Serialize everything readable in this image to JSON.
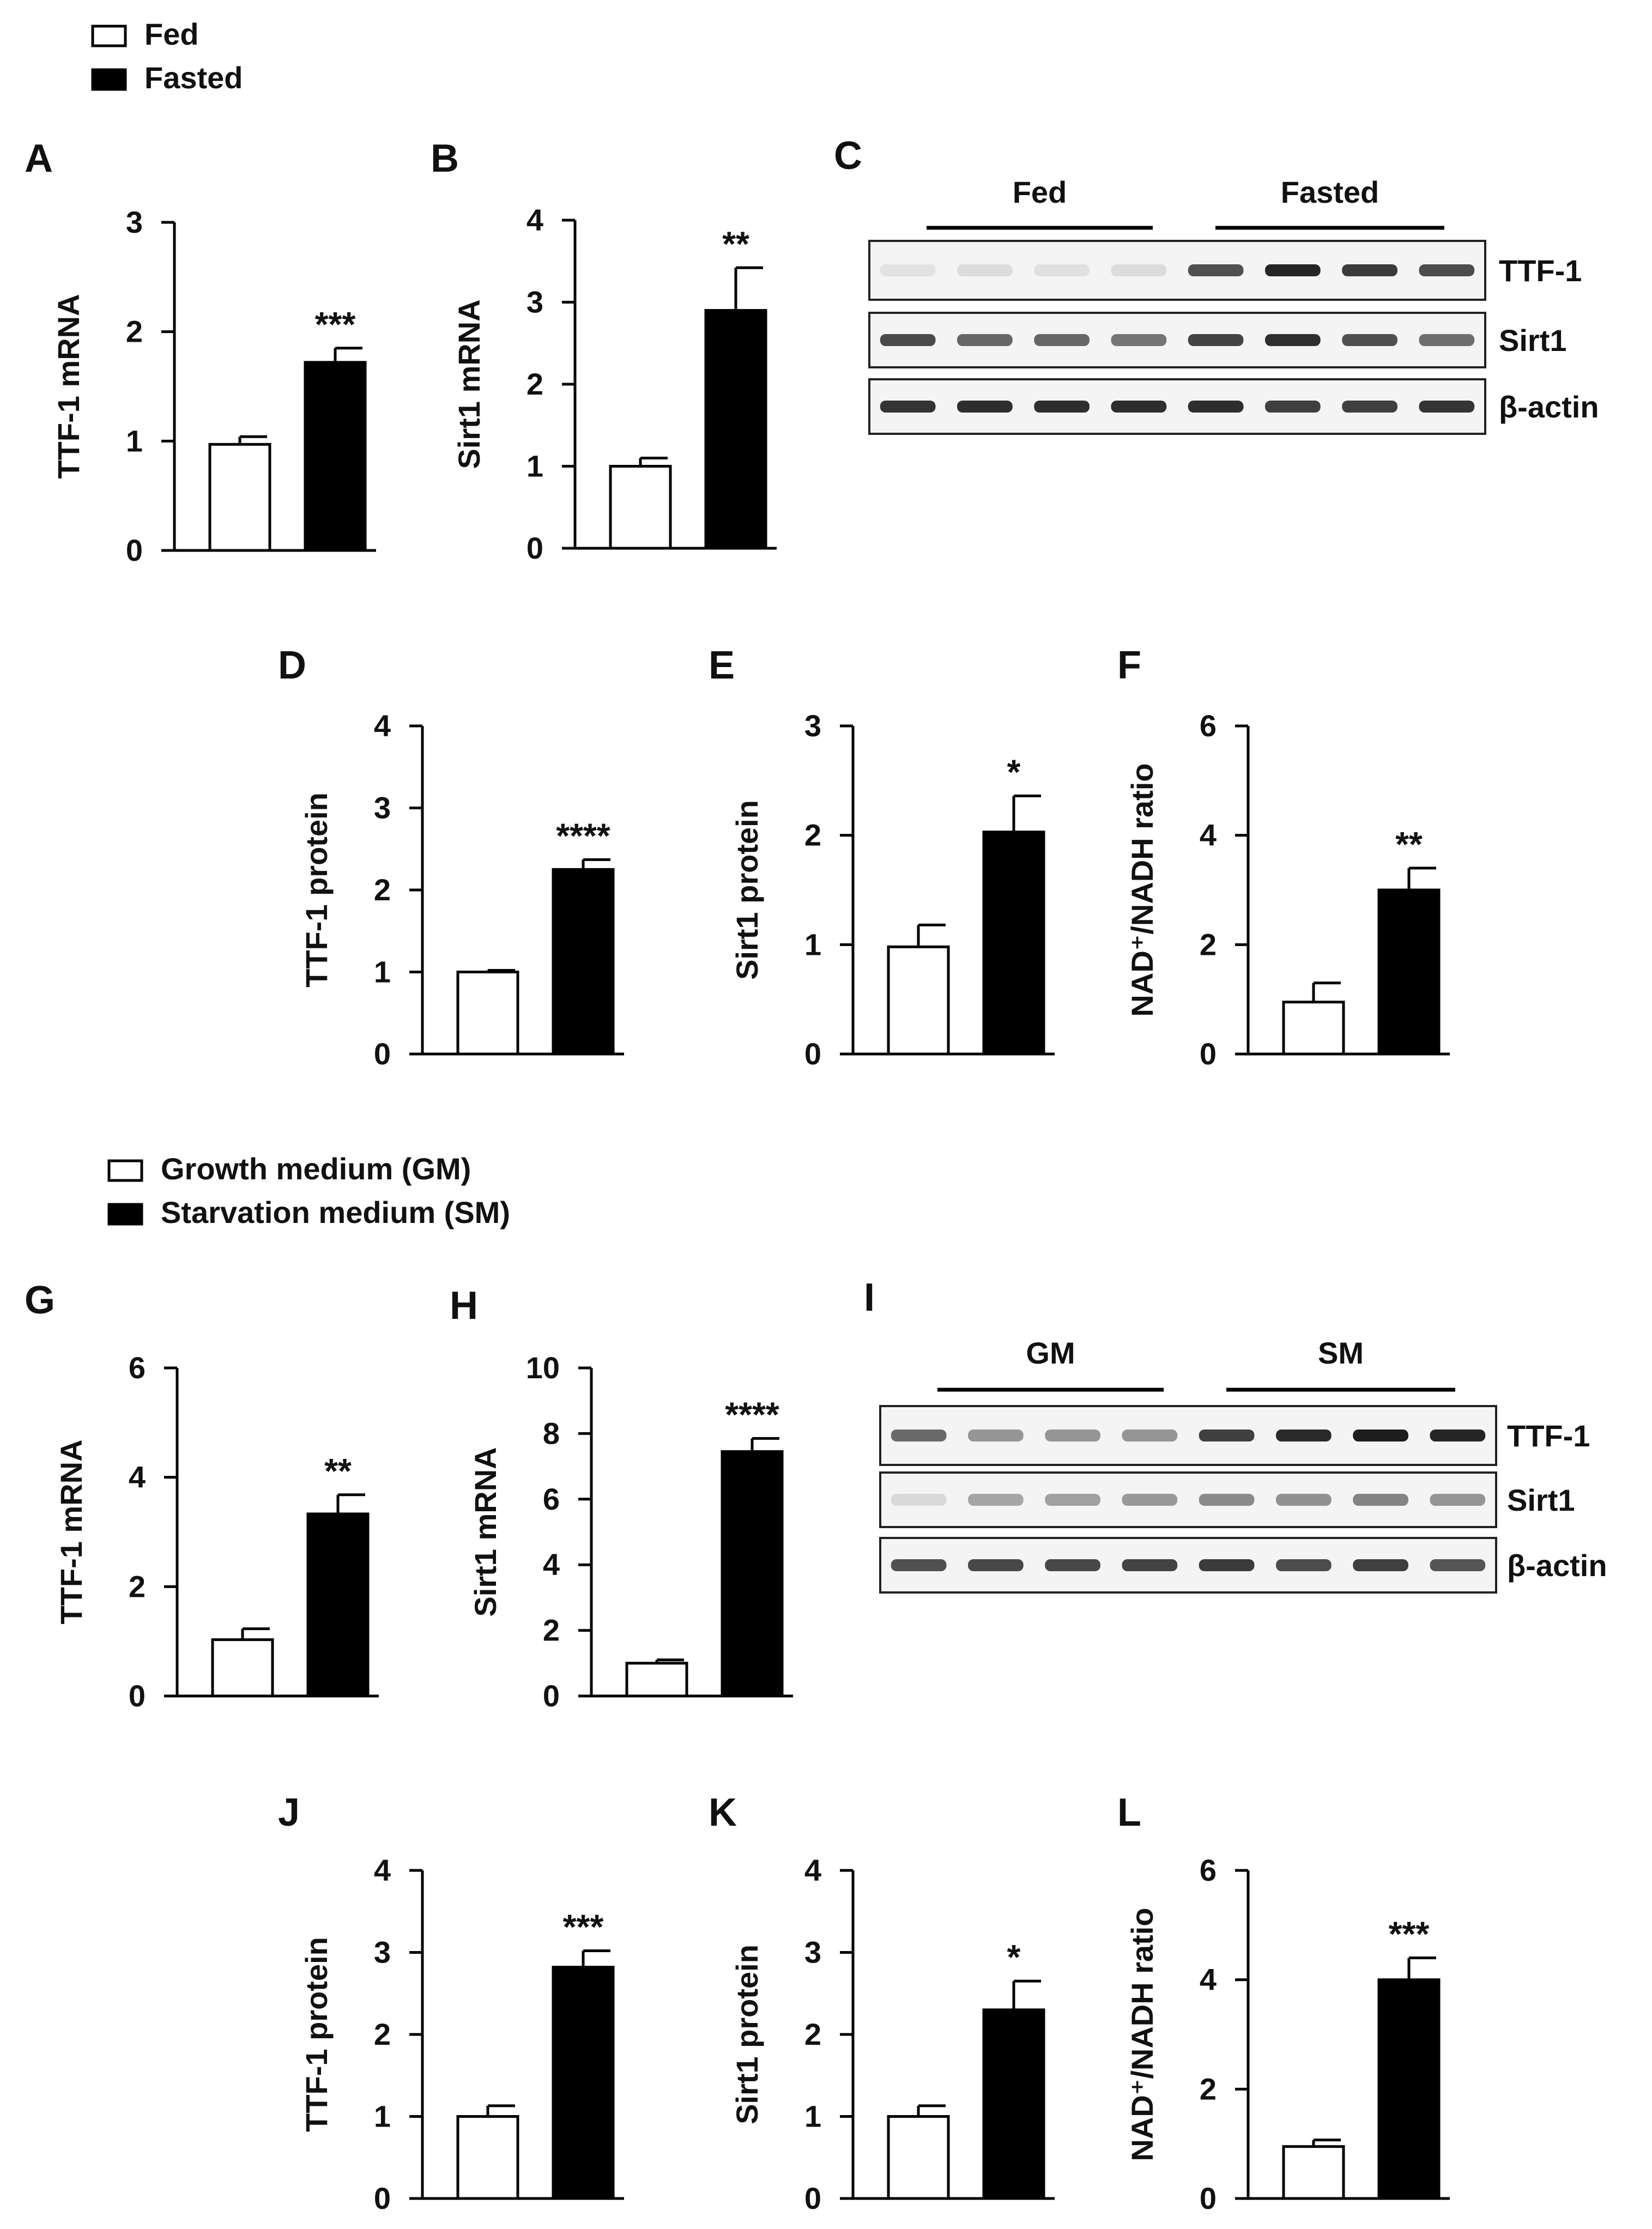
{
  "legends": [
    {
      "items": [
        {
          "label": "Fed",
          "fill": "#ffffff"
        },
        {
          "label": "Fasted",
          "fill": "#000000"
        }
      ]
    },
    {
      "items": [
        {
          "label": "Growth medium (GM)",
          "fill": "#ffffff"
        },
        {
          "label": "Starvation medium (SM)",
          "fill": "#000000"
        }
      ]
    }
  ],
  "chart_data": [
    {
      "panel": "A",
      "type": "bar",
      "categories": [
        "Fed",
        "Fasted"
      ],
      "values": [
        0.97,
        1.72
      ],
      "errors": [
        0.07,
        0.13
      ],
      "ylabel": "TTF-1 mRNA",
      "ylim": [
        0,
        3
      ],
      "yticks": [
        0,
        1,
        2,
        3
      ],
      "yticklabels": [
        "0",
        "1",
        "2",
        "3"
      ],
      "significance": "***",
      "colors": [
        "#ffffff",
        "#000000"
      ]
    },
    {
      "panel": "B",
      "type": "bar",
      "categories": [
        "Fed",
        "Fasted"
      ],
      "values": [
        1.0,
        2.9
      ],
      "errors": [
        0.1,
        0.52
      ],
      "ylabel": "Sirt1 mRNA",
      "ylim": [
        0,
        4
      ],
      "yticks": [
        0,
        1,
        2,
        3,
        4
      ],
      "yticklabels": [
        "0",
        "1",
        "2",
        "3",
        "4"
      ],
      "significance": "**",
      "colors": [
        "#ffffff",
        "#000000"
      ]
    },
    {
      "panel": "D",
      "type": "bar",
      "categories": [
        "Fed",
        "Fasted"
      ],
      "values": [
        1.0,
        2.25
      ],
      "errors": [
        0.02,
        0.12
      ],
      "ylabel": "TTF-1 protein",
      "ylim": [
        0,
        4
      ],
      "yticks": [
        0,
        1,
        2,
        3,
        4
      ],
      "yticklabels": [
        "0",
        "1",
        "2",
        "3",
        "4"
      ],
      "significance": "****",
      "colors": [
        "#ffffff",
        "#000000"
      ]
    },
    {
      "panel": "E",
      "type": "bar",
      "categories": [
        "Fed",
        "Fasted"
      ],
      "values": [
        0.98,
        2.03
      ],
      "errors": [
        0.2,
        0.33
      ],
      "ylabel": "Sirt1 protein",
      "ylim": [
        0,
        3
      ],
      "yticks": [
        0,
        1,
        2,
        3
      ],
      "yticklabels": [
        "0",
        "1",
        "2",
        "3"
      ],
      "significance": "*",
      "colors": [
        "#ffffff",
        "#000000"
      ]
    },
    {
      "panel": "F",
      "type": "bar",
      "categories": [
        "Fed",
        "Fasted"
      ],
      "values": [
        0.95,
        3.0
      ],
      "errors": [
        0.35,
        0.4
      ],
      "ylabel": "NAD⁺/NADH ratio",
      "ylim": [
        0,
        6
      ],
      "yticks": [
        0,
        2,
        4,
        6
      ],
      "yticklabels": [
        "0",
        "2",
        "4",
        "6"
      ],
      "significance": "**",
      "colors": [
        "#ffffff",
        "#000000"
      ]
    },
    {
      "panel": "G",
      "type": "bar",
      "categories": [
        "GM",
        "SM"
      ],
      "values": [
        1.03,
        3.33
      ],
      "errors": [
        0.2,
        0.35
      ],
      "ylabel": "TTF-1 mRNA",
      "ylim": [
        0,
        6
      ],
      "yticks": [
        0,
        2,
        4,
        6
      ],
      "yticklabels": [
        "0",
        "2",
        "4",
        "6"
      ],
      "significance": "**",
      "colors": [
        "#ffffff",
        "#000000"
      ]
    },
    {
      "panel": "H",
      "type": "bar",
      "categories": [
        "GM",
        "SM"
      ],
      "values": [
        1.0,
        7.45
      ],
      "errors": [
        0.1,
        0.4
      ],
      "ylabel": "Sirt1 mRNA",
      "ylim": [
        0,
        10
      ],
      "yticks": [
        0,
        2,
        4,
        6,
        8,
        10
      ],
      "yticklabels": [
        "0",
        "2",
        "4",
        "6",
        "8",
        "10"
      ],
      "significance": "****",
      "colors": [
        "#ffffff",
        "#000000"
      ]
    },
    {
      "panel": "J",
      "type": "bar",
      "categories": [
        "GM",
        "SM"
      ],
      "values": [
        1.0,
        2.82
      ],
      "errors": [
        0.13,
        0.2
      ],
      "ylabel": "TTF-1 protein",
      "ylim": [
        0,
        4
      ],
      "yticks": [
        0,
        1,
        2,
        3,
        4
      ],
      "yticklabels": [
        "0",
        "1",
        "2",
        "3",
        "4"
      ],
      "significance": "***",
      "colors": [
        "#ffffff",
        "#000000"
      ]
    },
    {
      "panel": "K",
      "type": "bar",
      "categories": [
        "GM",
        "SM"
      ],
      "values": [
        1.0,
        2.3
      ],
      "errors": [
        0.13,
        0.35
      ],
      "ylabel": "Sirt1 protein",
      "ylim": [
        0,
        4
      ],
      "yticks": [
        0,
        1,
        2,
        3,
        4
      ],
      "yticklabels": [
        "0",
        "1",
        "2",
        "3",
        "4"
      ],
      "significance": "*",
      "colors": [
        "#ffffff",
        "#000000"
      ]
    },
    {
      "panel": "L",
      "type": "bar",
      "categories": [
        "GM",
        "SM"
      ],
      "values": [
        0.95,
        4.0
      ],
      "errors": [
        0.12,
        0.4
      ],
      "ylabel": "NAD⁺/NADH ratio",
      "ylim": [
        0,
        6
      ],
      "yticks": [
        0,
        2,
        4,
        6
      ],
      "yticklabels": [
        "0",
        "2",
        "4",
        "6"
      ],
      "significance": "***",
      "colors": [
        "#ffffff",
        "#000000"
      ]
    }
  ],
  "blots": [
    {
      "panel": "C",
      "groups": [
        "Fed",
        "Fasted"
      ],
      "rows": [
        {
          "label": "TTF-1",
          "bands": [
            0.04,
            0.07,
            0.05,
            0.07,
            0.72,
            0.92,
            0.82,
            0.74
          ]
        },
        {
          "label": "Sirt1",
          "bands": [
            0.75,
            0.62,
            0.62,
            0.55,
            0.78,
            0.88,
            0.72,
            0.58
          ]
        },
        {
          "label": "β-actin",
          "bands": [
            0.85,
            0.88,
            0.88,
            0.88,
            0.88,
            0.8,
            0.8,
            0.85
          ]
        }
      ]
    },
    {
      "panel": "I",
      "groups": [
        "GM",
        "SM"
      ],
      "rows": [
        {
          "label": "TTF-1",
          "bands": [
            0.6,
            0.4,
            0.4,
            0.4,
            0.8,
            0.9,
            0.96,
            0.92
          ]
        },
        {
          "label": "Sirt1",
          "bands": [
            0.08,
            0.32,
            0.35,
            0.38,
            0.45,
            0.42,
            0.48,
            0.4
          ]
        },
        {
          "label": "β-actin",
          "bands": [
            0.72,
            0.76,
            0.76,
            0.78,
            0.82,
            0.74,
            0.8,
            0.7
          ]
        }
      ]
    }
  ]
}
